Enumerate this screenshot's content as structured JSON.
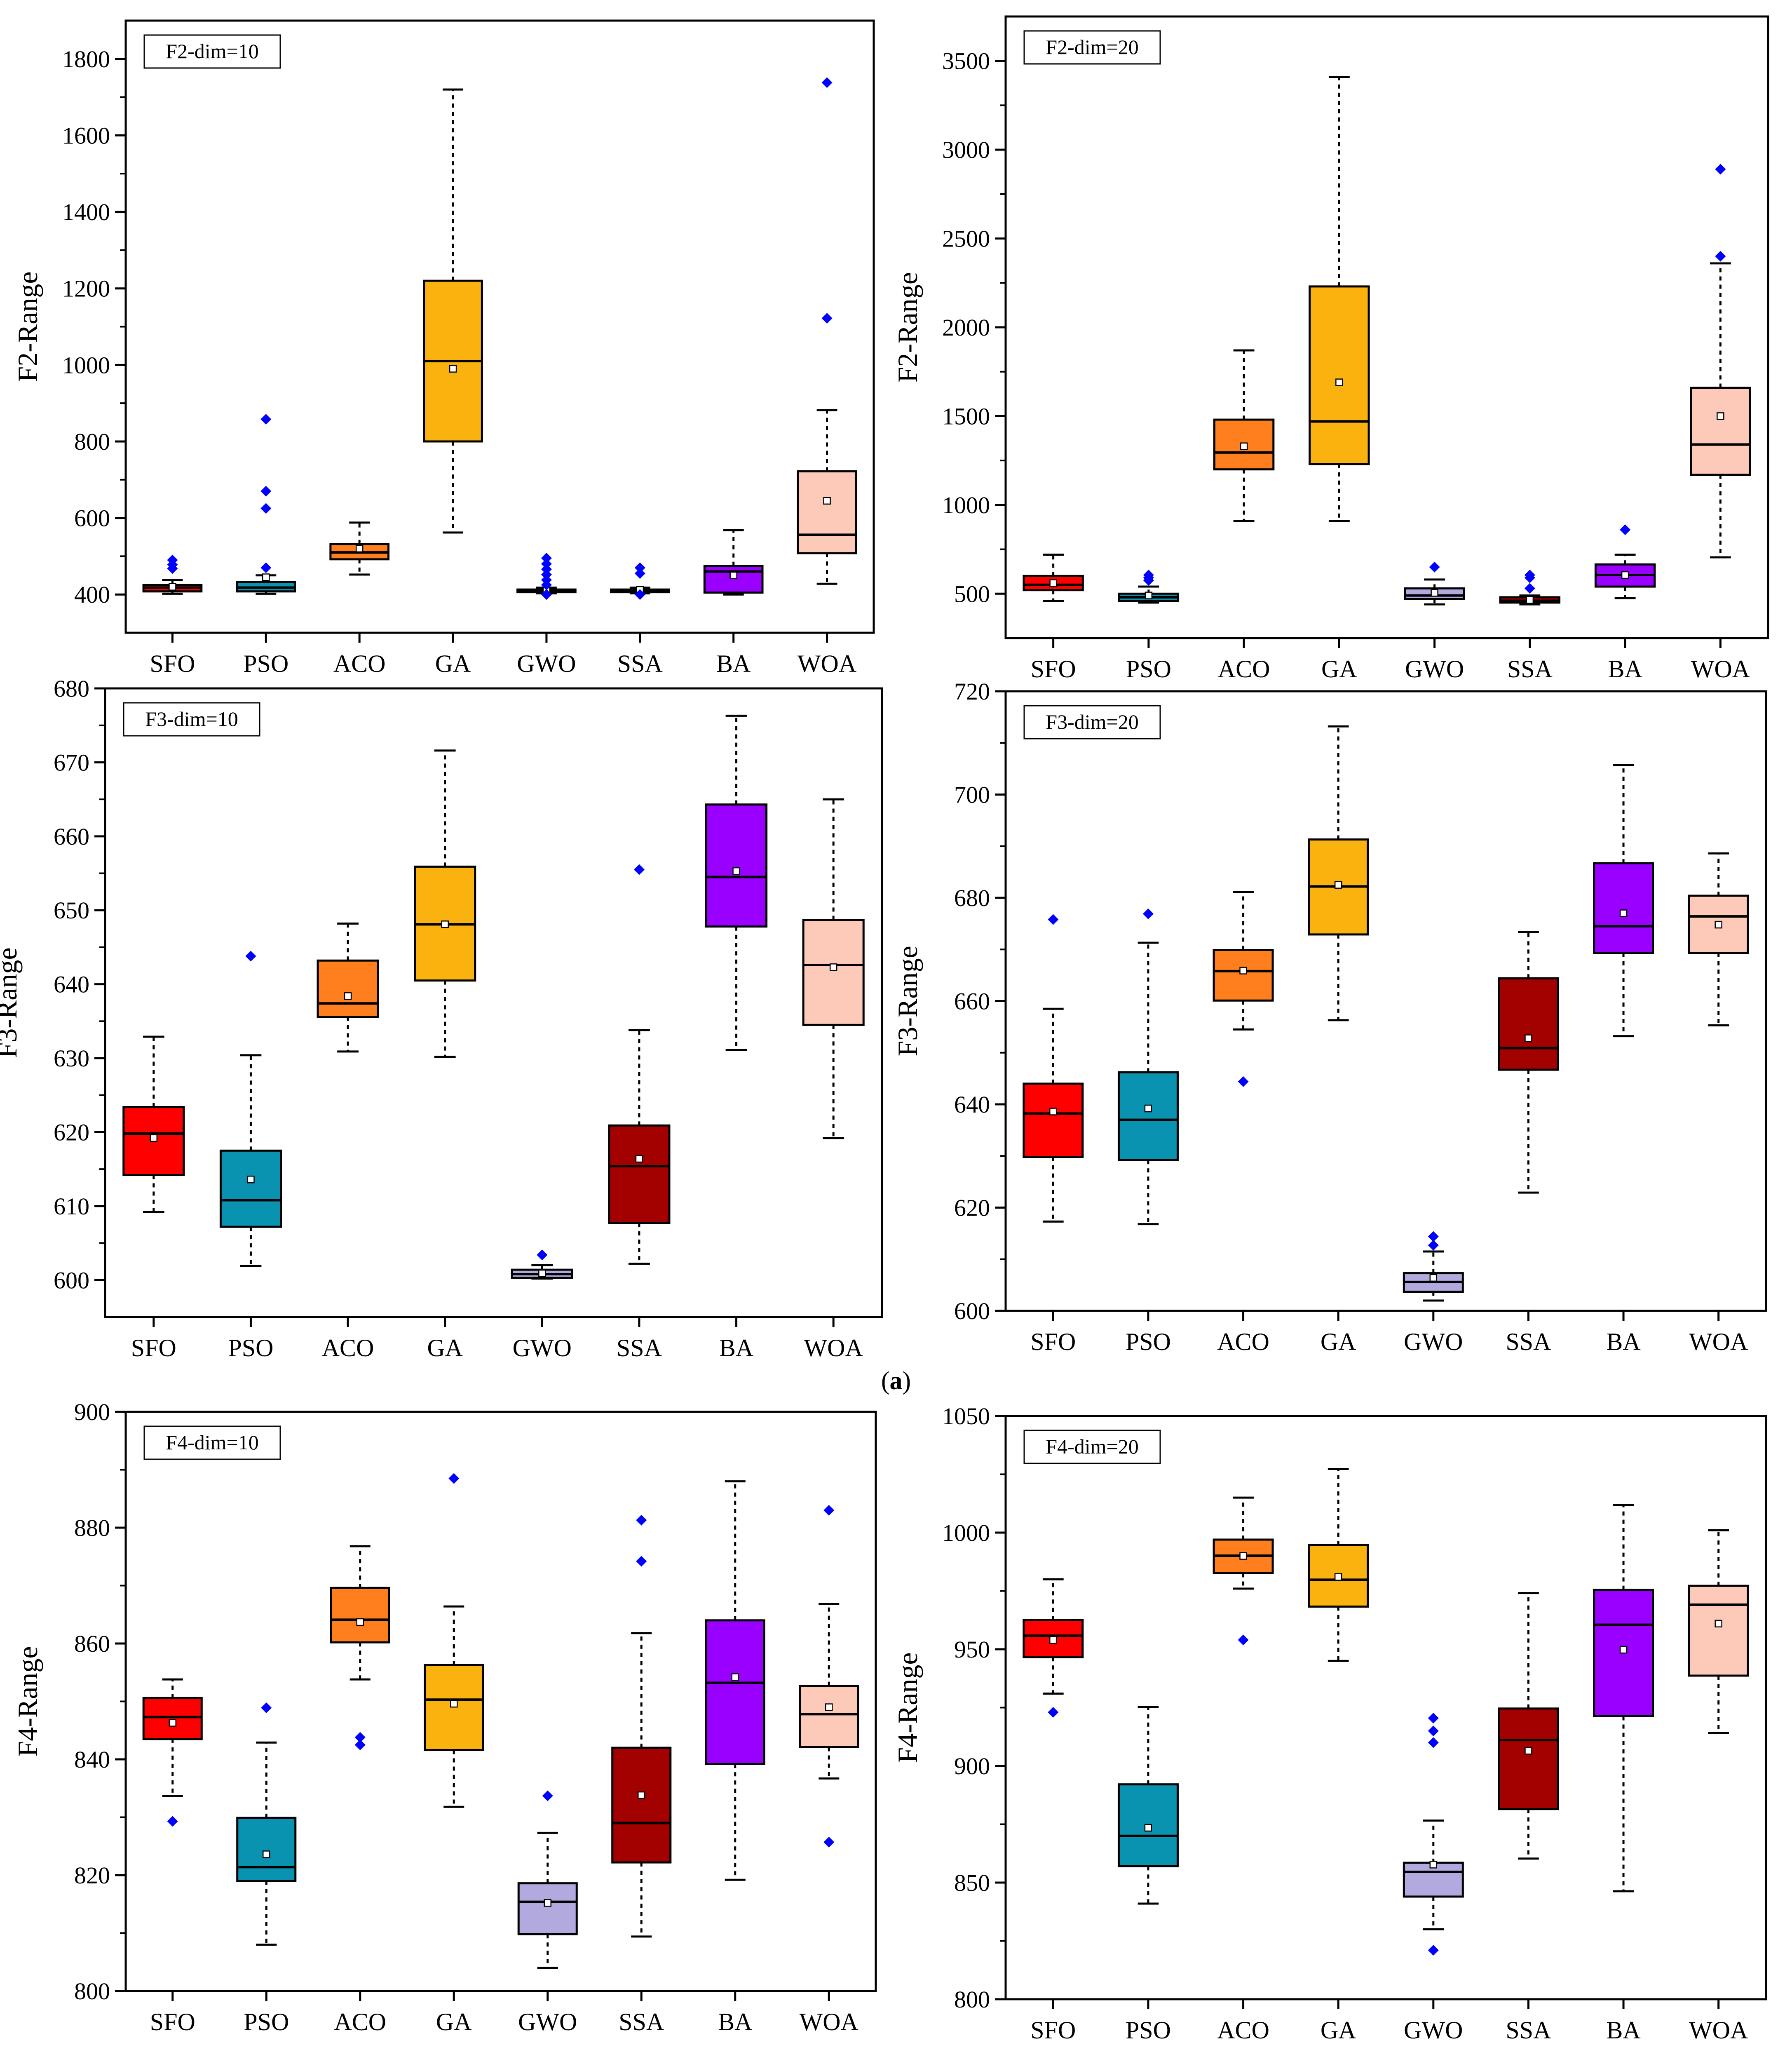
{
  "figure": {
    "caption": {
      "open": "(",
      "letter": "a",
      "close": ")"
    }
  },
  "colors": {
    "SFO": "#ff0000",
    "PSO": "#0a93b1",
    "ACO": "#ff7f1e",
    "GA": "#f9b20e",
    "GWO": "#b2a9df",
    "SSA": "#a30000",
    "BA": "#9a00ff",
    "WOA": "#fdc9b9",
    "outlier": "#0000ff",
    "axis": "#000000"
  },
  "chart_data": [
    {
      "type": "box",
      "panel": "top-left",
      "tag": "F2-dim=10",
      "ylabel": "F2-Range",
      "xlabel": "",
      "ylim": [
        300,
        1900
      ],
      "yticks": [
        400,
        600,
        800,
        1000,
        1200,
        1400,
        1600,
        1800
      ],
      "categories": [
        "SFO",
        "PSO",
        "ACO",
        "GA",
        "GWO",
        "SSA",
        "BA",
        "WOA"
      ],
      "boxes": [
        {
          "name": "SFO",
          "whisker_low": 402,
          "q1": 408,
          "median": 418,
          "q3": 425,
          "whisker_high": 438,
          "mean": 420,
          "outliers": [
            468,
            478,
            490
          ]
        },
        {
          "name": "PSO",
          "whisker_low": 402,
          "q1": 408,
          "median": 418,
          "q3": 432,
          "whisker_high": 450,
          "mean": 445,
          "outliers": [
            470,
            625,
            670,
            858
          ]
        },
        {
          "name": "ACO",
          "whisker_low": 452,
          "q1": 492,
          "median": 510,
          "q3": 532,
          "whisker_high": 588,
          "mean": 520,
          "outliers": []
        },
        {
          "name": "GA",
          "whisker_low": 562,
          "q1": 800,
          "median": 1010,
          "q3": 1220,
          "whisker_high": 1720,
          "mean": 990,
          "outliers": []
        },
        {
          "name": "GWO",
          "whisker_low": 403,
          "q1": 406,
          "median": 410,
          "q3": 413,
          "whisker_high": 418,
          "mean": 410,
          "outliers": [
            400,
            425,
            438,
            452,
            466,
            480,
            495
          ]
        },
        {
          "name": "SSA",
          "whisker_low": 403,
          "q1": 406,
          "median": 410,
          "q3": 413,
          "whisker_high": 418,
          "mean": 412,
          "outliers": [
            400,
            455,
            470
          ]
        },
        {
          "name": "BA",
          "whisker_low": 400,
          "q1": 405,
          "median": 460,
          "q3": 475,
          "whisker_high": 568,
          "mean": 450,
          "outliers": []
        },
        {
          "name": "WOA",
          "whisker_low": 428,
          "q1": 508,
          "median": 556,
          "q3": 722,
          "whisker_high": 882,
          "mean": 645,
          "outliers": [
            1122,
            1738
          ]
        }
      ]
    },
    {
      "type": "box",
      "panel": "top-right",
      "tag": "F2-dim=20",
      "ylabel": "F2-Range",
      "xlabel": "",
      "ylim": [
        250,
        3750
      ],
      "yticks": [
        500,
        1000,
        1500,
        2000,
        2500,
        3000,
        3500
      ],
      "categories": [
        "SFO",
        "PSO",
        "ACO",
        "GA",
        "GWO",
        "SSA",
        "BA",
        "WOA"
      ],
      "boxes": [
        {
          "name": "SFO",
          "whisker_low": 460,
          "q1": 520,
          "median": 550,
          "q3": 600,
          "whisker_high": 720,
          "mean": 560,
          "outliers": []
        },
        {
          "name": "PSO",
          "whisker_low": 450,
          "q1": 460,
          "median": 480,
          "q3": 500,
          "whisker_high": 540,
          "mean": 490,
          "outliers": [
            575,
            590,
            605
          ]
        },
        {
          "name": "ACO",
          "whisker_low": 910,
          "q1": 1200,
          "median": 1295,
          "q3": 1480,
          "whisker_high": 1870,
          "mean": 1330,
          "outliers": []
        },
        {
          "name": "GA",
          "whisker_low": 910,
          "q1": 1230,
          "median": 1470,
          "q3": 2230,
          "whisker_high": 3410,
          "mean": 1690,
          "outliers": []
        },
        {
          "name": "GWO",
          "whisker_low": 440,
          "q1": 470,
          "median": 490,
          "q3": 530,
          "whisker_high": 580,
          "mean": 505,
          "outliers": [
            650
          ]
        },
        {
          "name": "SSA",
          "whisker_low": 440,
          "q1": 450,
          "median": 460,
          "q3": 480,
          "whisker_high": 490,
          "mean": 465,
          "outliers": [
            530,
            590,
            605
          ]
        },
        {
          "name": "BA",
          "whisker_low": 475,
          "q1": 540,
          "median": 605,
          "q3": 665,
          "whisker_high": 720,
          "mean": 605,
          "outliers": [
            860
          ]
        },
        {
          "name": "WOA",
          "whisker_low": 705,
          "q1": 1170,
          "median": 1340,
          "q3": 1660,
          "whisker_high": 2360,
          "mean": 1500,
          "outliers": [
            2400,
            2890
          ]
        }
      ]
    },
    {
      "type": "box",
      "panel": "middle-left",
      "tag": "F3-dim=10",
      "ylabel": "F3-Range",
      "xlabel": "",
      "ylim": [
        595,
        680
      ],
      "yticks": [
        600,
        610,
        620,
        630,
        640,
        650,
        660,
        670,
        680
      ],
      "categories": [
        "SFO",
        "PSO",
        "ACO",
        "GA",
        "GWO",
        "SSA",
        "BA",
        "WOA"
      ],
      "boxes": [
        {
          "name": "SFO",
          "whisker_low": 609.2,
          "q1": 614.2,
          "median": 619.8,
          "q3": 623.4,
          "whisker_high": 632.9,
          "mean": 619.2,
          "outliers": []
        },
        {
          "name": "PSO",
          "whisker_low": 601.9,
          "q1": 607.2,
          "median": 610.8,
          "q3": 617.5,
          "whisker_high": 630.4,
          "mean": 613.6,
          "outliers": [
            643.8
          ]
        },
        {
          "name": "ACO",
          "whisker_low": 630.9,
          "q1": 635.6,
          "median": 637.4,
          "q3": 643.2,
          "whisker_high": 648.2,
          "mean": 638.4,
          "outliers": []
        },
        {
          "name": "GA",
          "whisker_low": 630.2,
          "q1": 640.5,
          "median": 648.1,
          "q3": 655.9,
          "whisker_high": 671.6,
          "mean": 648.1,
          "outliers": []
        },
        {
          "name": "GWO",
          "whisker_low": 600.2,
          "q1": 600.3,
          "median": 600.8,
          "q3": 601.4,
          "whisker_high": 602.0,
          "mean": 600.9,
          "outliers": [
            603.4
          ]
        },
        {
          "name": "SSA",
          "whisker_low": 602.2,
          "q1": 607.7,
          "median": 615.4,
          "q3": 620.9,
          "whisker_high": 633.8,
          "mean": 616.4,
          "outliers": [
            655.5
          ]
        },
        {
          "name": "BA",
          "whisker_low": 631.1,
          "q1": 647.8,
          "median": 654.5,
          "q3": 664.3,
          "whisker_high": 676.3,
          "mean": 655.3,
          "outliers": []
        },
        {
          "name": "WOA",
          "whisker_low": 619.2,
          "q1": 634.5,
          "median": 642.6,
          "q3": 648.7,
          "whisker_high": 665.0,
          "mean": 642.3,
          "outliers": []
        }
      ]
    },
    {
      "type": "box",
      "panel": "middle-right",
      "tag": "F3-dim=20",
      "ylabel": "F3-Range",
      "xlabel": "",
      "ylim": [
        600,
        720
      ],
      "yticks": [
        600,
        620,
        640,
        660,
        680,
        700,
        720
      ],
      "categories": [
        "SFO",
        "PSO",
        "ACO",
        "GA",
        "GWO",
        "SSA",
        "BA",
        "WOA"
      ],
      "boxes": [
        {
          "name": "SFO",
          "whisker_low": 617.3,
          "q1": 629.8,
          "median": 638.2,
          "q3": 644.0,
          "whisker_high": 658.5,
          "mean": 638.6,
          "outliers": [
            675.8
          ]
        },
        {
          "name": "PSO",
          "whisker_low": 616.8,
          "q1": 629.2,
          "median": 637.0,
          "q3": 646.2,
          "whisker_high": 671.3,
          "mean": 639.2,
          "outliers": [
            676.9
          ]
        },
        {
          "name": "ACO",
          "whisker_low": 654.5,
          "q1": 660.1,
          "median": 665.8,
          "q3": 669.9,
          "whisker_high": 681.1,
          "mean": 665.9,
          "outliers": [
            644.4
          ]
        },
        {
          "name": "GA",
          "whisker_low": 656.3,
          "q1": 672.9,
          "median": 682.2,
          "q3": 691.3,
          "whisker_high": 713.2,
          "mean": 682.5,
          "outliers": []
        },
        {
          "name": "GWO",
          "whisker_low": 602.0,
          "q1": 603.7,
          "median": 605.6,
          "q3": 607.3,
          "whisker_high": 611.5,
          "mean": 606.4,
          "outliers": [
            612.7,
            614.4
          ]
        },
        {
          "name": "SSA",
          "whisker_low": 622.9,
          "q1": 646.7,
          "median": 650.9,
          "q3": 664.4,
          "whisker_high": 673.4,
          "mean": 652.8,
          "outliers": []
        },
        {
          "name": "BA",
          "whisker_low": 653.2,
          "q1": 669.3,
          "median": 674.5,
          "q3": 686.7,
          "whisker_high": 705.7,
          "mean": 677.0,
          "outliers": []
        },
        {
          "name": "WOA",
          "whisker_low": 655.3,
          "q1": 669.3,
          "median": 676.4,
          "q3": 680.4,
          "whisker_high": 688.6,
          "mean": 674.8,
          "outliers": []
        }
      ]
    },
    {
      "type": "box",
      "panel": "bottom-left",
      "tag": "F4-dim=10",
      "ylabel": "F4-Range",
      "xlabel": "",
      "ylim": [
        800,
        900
      ],
      "yticks": [
        800,
        820,
        840,
        860,
        880,
        900
      ],
      "categories": [
        "SFO",
        "PSO",
        "ACO",
        "GA",
        "GWO",
        "SSA",
        "BA",
        "WOA"
      ],
      "boxes": [
        {
          "name": "SFO",
          "whisker_low": 833.7,
          "q1": 843.5,
          "median": 847.3,
          "q3": 850.6,
          "whisker_high": 853.8,
          "mean": 846.3,
          "outliers": [
            829.3
          ]
        },
        {
          "name": "PSO",
          "whisker_low": 808.0,
          "q1": 819.0,
          "median": 821.4,
          "q3": 829.9,
          "whisker_high": 842.9,
          "mean": 823.6,
          "outliers": [
            848.9
          ]
        },
        {
          "name": "ACO",
          "whisker_low": 853.8,
          "q1": 860.2,
          "median": 864.1,
          "q3": 869.6,
          "whisker_high": 876.8,
          "mean": 863.7,
          "outliers": [
            842.5,
            843.8
          ]
        },
        {
          "name": "GA",
          "whisker_low": 831.8,
          "q1": 841.6,
          "median": 850.3,
          "q3": 856.3,
          "whisker_high": 866.4,
          "mean": 849.6,
          "outliers": [
            888.5
          ]
        },
        {
          "name": "GWO",
          "whisker_low": 804.0,
          "q1": 809.8,
          "median": 815.4,
          "q3": 818.6,
          "whisker_high": 827.3,
          "mean": 815.2,
          "outliers": [
            833.7
          ]
        },
        {
          "name": "SSA",
          "whisker_low": 809.4,
          "q1": 822.2,
          "median": 829.0,
          "q3": 842.0,
          "whisker_high": 861.8,
          "mean": 833.8,
          "outliers": [
            874.2,
            881.3
          ]
        },
        {
          "name": "BA",
          "whisker_low": 819.2,
          "q1": 839.2,
          "median": 853.2,
          "q3": 864.0,
          "whisker_high": 888.0,
          "mean": 854.2,
          "outliers": []
        },
        {
          "name": "WOA",
          "whisker_low": 836.7,
          "q1": 842.1,
          "median": 847.8,
          "q3": 852.7,
          "whisker_high": 866.8,
          "mean": 849.0,
          "outliers": [
            825.7,
            883.0
          ]
        }
      ]
    },
    {
      "type": "box",
      "panel": "bottom-right",
      "tag": "F4-dim=20",
      "ylabel": "F4-Range",
      "xlabel": "",
      "ylim": [
        800,
        1050
      ],
      "yticks": [
        800,
        850,
        900,
        950,
        1000,
        1050
      ],
      "categories": [
        "SFO",
        "PSO",
        "ACO",
        "GA",
        "GWO",
        "SSA",
        "BA",
        "WOA"
      ],
      "boxes": [
        {
          "name": "SFO",
          "whisker_low": 931.0,
          "q1": 946.6,
          "median": 955.8,
          "q3": 962.5,
          "whisker_high": 980.0,
          "mean": 954.0,
          "outliers": [
            923.0
          ]
        },
        {
          "name": "PSO",
          "whisker_low": 841.0,
          "q1": 857.0,
          "median": 870.0,
          "q3": 892.1,
          "whisker_high": 925.3,
          "mean": 873.5,
          "outliers": []
        },
        {
          "name": "ACO",
          "whisker_low": 976.0,
          "q1": 982.6,
          "median": 990.1,
          "q3": 997.0,
          "whisker_high": 1015.0,
          "mean": 990.0,
          "outliers": [
            954.0
          ]
        },
        {
          "name": "GA",
          "whisker_low": 945.0,
          "q1": 968.3,
          "median": 979.8,
          "q3": 994.7,
          "whisker_high": 1027.3,
          "mean": 981.0,
          "outliers": []
        },
        {
          "name": "GWO",
          "whisker_low": 830.0,
          "q1": 844.0,
          "median": 854.6,
          "q3": 858.5,
          "whisker_high": 876.6,
          "mean": 857.7,
          "outliers": [
            821.0,
            910.0,
            915.0,
            920.5
          ]
        },
        {
          "name": "SSA",
          "whisker_low": 860.3,
          "q1": 881.5,
          "median": 911.1,
          "q3": 924.6,
          "whisker_high": 974.1,
          "mean": 906.5,
          "outliers": []
        },
        {
          "name": "BA",
          "whisker_low": 846.3,
          "q1": 921.3,
          "median": 960.5,
          "q3": 975.5,
          "whisker_high": 1011.8,
          "mean": 949.8,
          "outliers": []
        },
        {
          "name": "WOA",
          "whisker_low": 914.2,
          "q1": 938.7,
          "median": 969.1,
          "q3": 977.2,
          "whisker_high": 1001.0,
          "mean": 961.0,
          "outliers": []
        }
      ]
    }
  ]
}
